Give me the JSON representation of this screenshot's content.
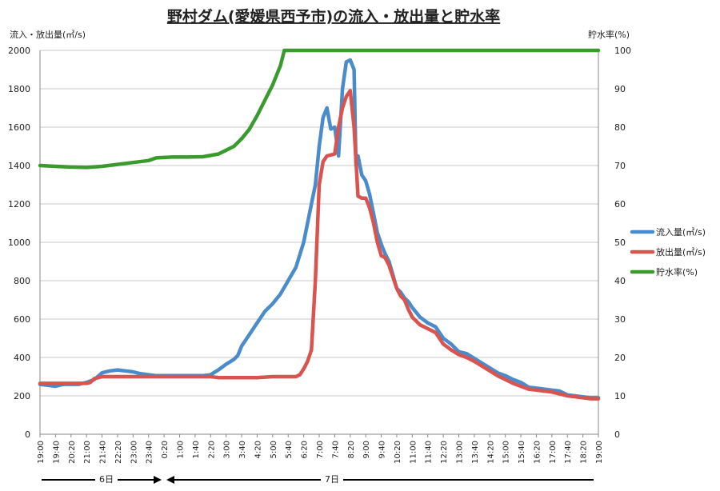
{
  "chart_data": {
    "type": "line",
    "title": "野村ダム(愛媛県西予市)の流入・放出量と貯水率",
    "ylabel_left": "流入・放出量(㎥/s)",
    "ylabel_right": "貯水率(%)",
    "ylim_left": [
      0,
      2000
    ],
    "ylim_right": [
      0,
      100
    ],
    "yticks_left": [
      "0",
      "200",
      "400",
      "600",
      "800",
      "1000",
      "1200",
      "1400",
      "1600",
      "1800",
      "2000"
    ],
    "yticks_right": [
      "0",
      "10",
      "20",
      "30",
      "40",
      "50",
      "60",
      "70",
      "80",
      "90",
      "100"
    ],
    "x_labels": [
      "19:00",
      "19:40",
      "20:20",
      "21:00",
      "21:40",
      "22:20",
      "23:00",
      "23:40",
      "0:20",
      "1:00",
      "1:40",
      "2:20",
      "3:00",
      "3:40",
      "4:20",
      "5:00",
      "5:40",
      "6:20",
      "7:00",
      "7:40",
      "8:20",
      "9:00",
      "9:40",
      "10:20",
      "11:00",
      "11:40",
      "12:20",
      "13:00",
      "13:40",
      "14:20",
      "15:00",
      "15:40",
      "16:20",
      "17:00",
      "17:40",
      "18:20",
      "19:00"
    ],
    "x_label_step_minutes": 40,
    "grid": true,
    "legend_position": "right",
    "day_markers": [
      {
        "label": "6日"
      },
      {
        "label": "7日"
      }
    ],
    "series": [
      {
        "name": "流入量(㎥/s)",
        "axis": "left",
        "color": "#4a8bc9",
        "points": [
          [
            0,
            260
          ],
          [
            20,
            255
          ],
          [
            40,
            250
          ],
          [
            60,
            260
          ],
          [
            80,
            260
          ],
          [
            100,
            260
          ],
          [
            120,
            270
          ],
          [
            140,
            285
          ],
          [
            160,
            320
          ],
          [
            180,
            330
          ],
          [
            200,
            335
          ],
          [
            220,
            330
          ],
          [
            240,
            325
          ],
          [
            260,
            315
          ],
          [
            280,
            310
          ],
          [
            300,
            305
          ],
          [
            320,
            305
          ],
          [
            340,
            305
          ],
          [
            360,
            305
          ],
          [
            380,
            305
          ],
          [
            400,
            305
          ],
          [
            420,
            305
          ],
          [
            440,
            310
          ],
          [
            460,
            335
          ],
          [
            480,
            365
          ],
          [
            500,
            390
          ],
          [
            510,
            410
          ],
          [
            520,
            460
          ],
          [
            540,
            520
          ],
          [
            560,
            580
          ],
          [
            580,
            640
          ],
          [
            600,
            680
          ],
          [
            620,
            730
          ],
          [
            640,
            800
          ],
          [
            660,
            870
          ],
          [
            680,
            1000
          ],
          [
            700,
            1200
          ],
          [
            710,
            1300
          ],
          [
            720,
            1500
          ],
          [
            730,
            1650
          ],
          [
            740,
            1700
          ],
          [
            750,
            1590
          ],
          [
            760,
            1600
          ],
          [
            770,
            1450
          ],
          [
            780,
            1800
          ],
          [
            790,
            1940
          ],
          [
            800,
            1950
          ],
          [
            810,
            1900
          ],
          [
            815,
            1400
          ],
          [
            820,
            1450
          ],
          [
            830,
            1350
          ],
          [
            840,
            1320
          ],
          [
            850,
            1250
          ],
          [
            860,
            1150
          ],
          [
            870,
            1050
          ],
          [
            880,
            990
          ],
          [
            890,
            940
          ],
          [
            900,
            900
          ],
          [
            910,
            830
          ],
          [
            920,
            760
          ],
          [
            930,
            740
          ],
          [
            940,
            710
          ],
          [
            950,
            690
          ],
          [
            960,
            660
          ],
          [
            980,
            610
          ],
          [
            1000,
            580
          ],
          [
            1020,
            560
          ],
          [
            1040,
            500
          ],
          [
            1060,
            470
          ],
          [
            1080,
            430
          ],
          [
            1100,
            420
          ],
          [
            1120,
            395
          ],
          [
            1140,
            370
          ],
          [
            1160,
            345
          ],
          [
            1180,
            320
          ],
          [
            1200,
            305
          ],
          [
            1220,
            285
          ],
          [
            1240,
            270
          ],
          [
            1260,
            245
          ],
          [
            1280,
            240
          ],
          [
            1300,
            235
          ],
          [
            1320,
            230
          ],
          [
            1340,
            225
          ],
          [
            1360,
            205
          ],
          [
            1380,
            200
          ],
          [
            1400,
            195
          ],
          [
            1420,
            190
          ],
          [
            1440,
            190
          ]
        ]
      },
      {
        "name": "放出量(㎥/s)",
        "axis": "left",
        "color": "#d9534f",
        "points": [
          [
            0,
            265
          ],
          [
            40,
            265
          ],
          [
            80,
            265
          ],
          [
            120,
            265
          ],
          [
            130,
            270
          ],
          [
            140,
            290
          ],
          [
            160,
            300
          ],
          [
            200,
            300
          ],
          [
            300,
            300
          ],
          [
            400,
            300
          ],
          [
            440,
            300
          ],
          [
            460,
            295
          ],
          [
            500,
            295
          ],
          [
            560,
            295
          ],
          [
            600,
            300
          ],
          [
            640,
            300
          ],
          [
            660,
            300
          ],
          [
            670,
            310
          ],
          [
            680,
            340
          ],
          [
            690,
            380
          ],
          [
            700,
            440
          ],
          [
            710,
            800
          ],
          [
            720,
            1300
          ],
          [
            730,
            1420
          ],
          [
            740,
            1450
          ],
          [
            760,
            1460
          ],
          [
            770,
            1600
          ],
          [
            780,
            1700
          ],
          [
            790,
            1760
          ],
          [
            800,
            1790
          ],
          [
            810,
            1600
          ],
          [
            820,
            1240
          ],
          [
            830,
            1230
          ],
          [
            840,
            1230
          ],
          [
            850,
            1180
          ],
          [
            860,
            1100
          ],
          [
            870,
            1000
          ],
          [
            880,
            930
          ],
          [
            890,
            920
          ],
          [
            900,
            880
          ],
          [
            910,
            820
          ],
          [
            920,
            760
          ],
          [
            930,
            720
          ],
          [
            940,
            700
          ],
          [
            950,
            650
          ],
          [
            960,
            610
          ],
          [
            980,
            570
          ],
          [
            1000,
            550
          ],
          [
            1020,
            530
          ],
          [
            1040,
            470
          ],
          [
            1060,
            440
          ],
          [
            1080,
            415
          ],
          [
            1100,
            400
          ],
          [
            1120,
            380
          ],
          [
            1140,
            355
          ],
          [
            1160,
            330
          ],
          [
            1180,
            305
          ],
          [
            1200,
            285
          ],
          [
            1220,
            265
          ],
          [
            1240,
            250
          ],
          [
            1260,
            235
          ],
          [
            1280,
            230
          ],
          [
            1300,
            225
          ],
          [
            1320,
            220
          ],
          [
            1340,
            210
          ],
          [
            1360,
            200
          ],
          [
            1380,
            195
          ],
          [
            1400,
            190
          ],
          [
            1420,
            185
          ],
          [
            1440,
            185
          ]
        ]
      },
      {
        "name": "貯水率(%)",
        "axis": "right",
        "color": "#3a9a2e",
        "points": [
          [
            0,
            70
          ],
          [
            40,
            69.8
          ],
          [
            80,
            69.6
          ],
          [
            120,
            69.5
          ],
          [
            160,
            69.8
          ],
          [
            200,
            70.3
          ],
          [
            240,
            70.8
          ],
          [
            280,
            71.3
          ],
          [
            300,
            72
          ],
          [
            340,
            72.2
          ],
          [
            380,
            72.2
          ],
          [
            420,
            72.3
          ],
          [
            460,
            73
          ],
          [
            480,
            74
          ],
          [
            500,
            75
          ],
          [
            520,
            77
          ],
          [
            540,
            79.5
          ],
          [
            560,
            83
          ],
          [
            580,
            87
          ],
          [
            600,
            91
          ],
          [
            620,
            96
          ],
          [
            630,
            100
          ],
          [
            660,
            100
          ],
          [
            720,
            100
          ],
          [
            840,
            100
          ],
          [
            960,
            100
          ],
          [
            1080,
            100
          ],
          [
            1200,
            100
          ],
          [
            1320,
            100
          ],
          [
            1440,
            100
          ]
        ]
      }
    ]
  }
}
